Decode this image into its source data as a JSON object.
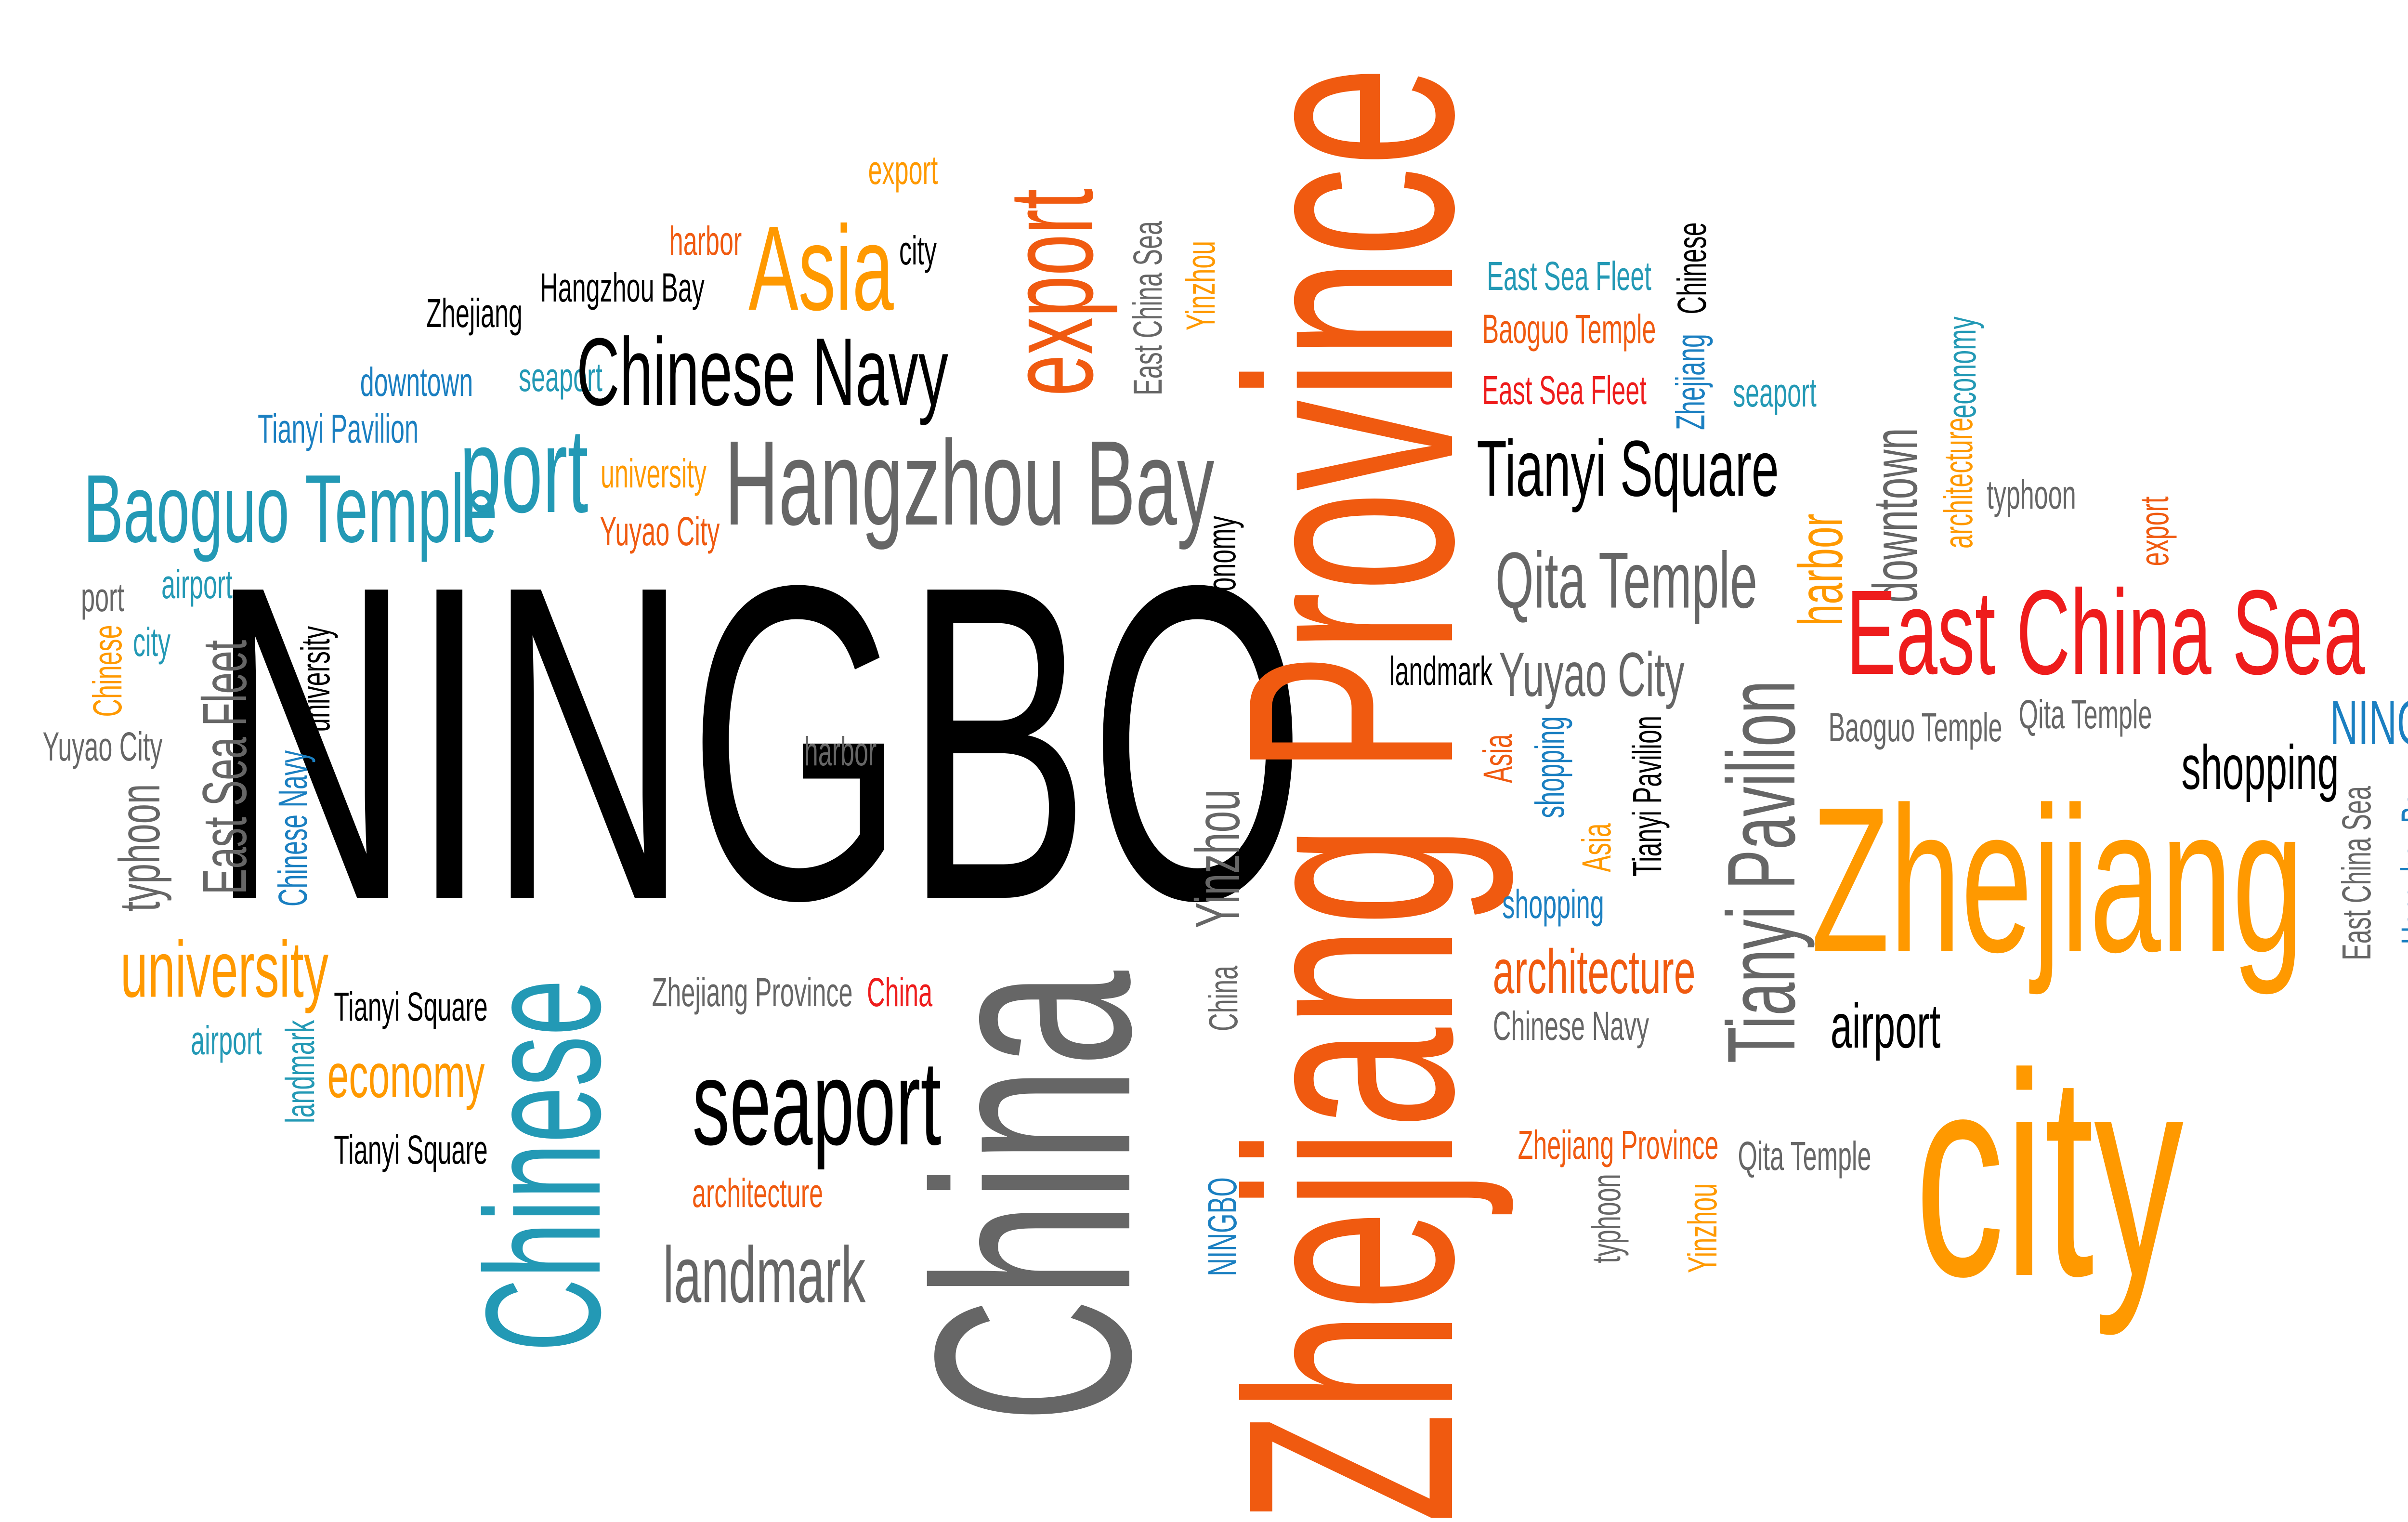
{
  "colors": {
    "black": "#000000",
    "orange": "#f05a10",
    "amber": "#ff9900",
    "teal": "#2399b5",
    "gray": "#666666",
    "red": "#ee1c1c",
    "blue": "#1a7fc1"
  },
  "words": [
    "export",
    "harbor",
    "Asia",
    "city",
    "Zhejiang",
    "Hangzhou Bay",
    "downtown",
    "seaport",
    "Chinese Navy",
    "Tianyi Pavilion",
    "port",
    "university",
    "Baoguo Temple",
    "Yuyao City",
    "Hangzhou Bay",
    "NINGBO",
    "economy",
    "port",
    "airport",
    "Chinese",
    "city",
    "East Sea Fleet",
    "university",
    "Yuyao City",
    "typhoon",
    "Chinese Navy",
    "harbor",
    "university",
    "Tianyi Square",
    "airport",
    "landmark",
    "economy",
    "Tianyi Square",
    "Zhejiang Province",
    "China",
    "Chinese",
    "seaport",
    "architecture",
    "landmark",
    "China",
    "Yinzhou",
    "China",
    "NINGBO",
    "Zhejiang Province",
    "export",
    "East China Sea",
    "Yinzhou",
    "East Sea Fleet",
    "Baoguo Temple",
    "East Sea Fleet",
    "Chinese",
    "Zhejiang",
    "seaport",
    "Tianyi Square",
    "Qita Temple",
    "landmark",
    "Yuyao City",
    "Asia",
    "shopping",
    "Asia",
    "Tianyi Pavilion",
    "Tianyi Pavilion",
    "shopping",
    "architecture",
    "Chinese Navy",
    "Zhejiang Province",
    "typhoon",
    "Yinzhou",
    "Qita Temple",
    "harbor",
    "downtown",
    "architecture",
    "economy",
    "typhoon",
    "export",
    "East China Sea",
    "Baoguo Temple",
    "Qita Temple",
    "NINGBO",
    "shopping",
    "East China Sea",
    "Hangzhou Bay",
    "Zhejiang",
    "airport",
    "city"
  ]
}
